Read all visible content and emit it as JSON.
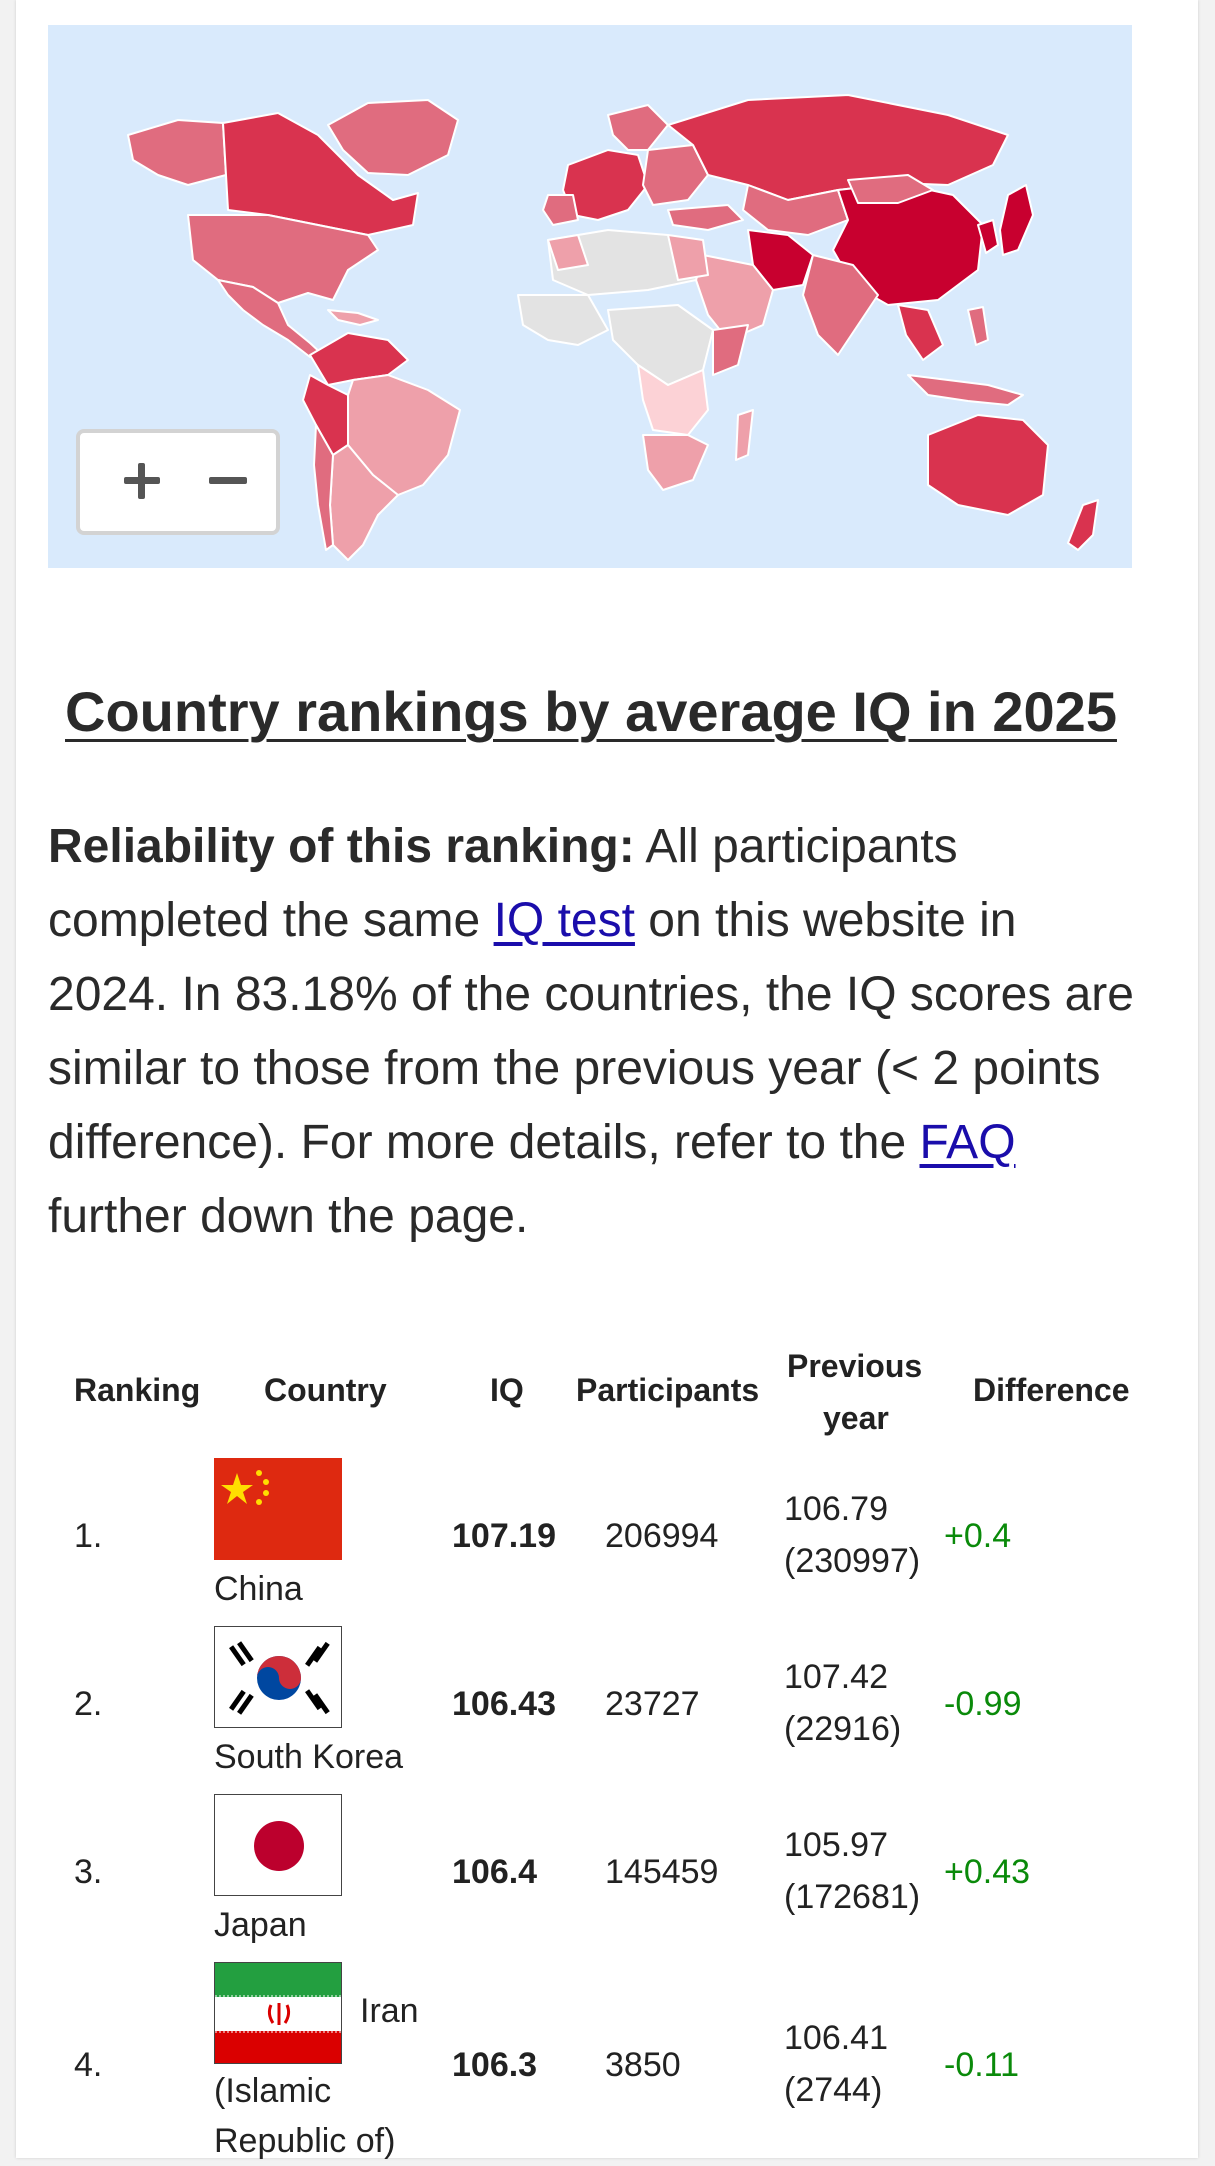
{
  "colors": {
    "ocean": "#d9eafc",
    "high": "#c8002f",
    "mid_high": "#d9334f",
    "mid": "#e06c7f",
    "low": "#eea0aa",
    "very_low": "#fcd2d6",
    "no_data": "#e3e3e3",
    "link": "#1a0dab",
    "diff_color": "#0a8a0a"
  },
  "map": {
    "zoom_in_label": "+",
    "zoom_out_label": "−"
  },
  "heading": "Country rankings by average IQ in 2025",
  "reliability": {
    "bold": "Reliability of this ranking:",
    "text1": " All participants completed the same ",
    "link1": "IQ test",
    "text2": " on this website in 2024. In 83.18% of the countries, the IQ scores are similar to those from the previous year (< 2 points difference). For more details, refer to the ",
    "link2": "FAQ",
    "text3": " further down the page."
  },
  "table": {
    "headers": {
      "ranking": "Ranking",
      "country": "Country",
      "iq": "IQ",
      "participants": "Participants",
      "previous_line1": "Previous",
      "previous_line2": "year",
      "difference": "Difference"
    },
    "rows": [
      {
        "rank": "1.",
        "country": "China",
        "flag": "china-flag",
        "iq": "107.19",
        "participants": "206994",
        "prev_iq": "106.79",
        "prev_participants": "(230997)",
        "diff": "+0.4"
      },
      {
        "rank": "2.",
        "country": "South Korea",
        "flag": "south-korea-flag",
        "iq": "106.43",
        "participants": "23727",
        "prev_iq": "107.42",
        "prev_participants": "(22916)",
        "diff": "-0.99"
      },
      {
        "rank": "3.",
        "country": "Japan",
        "flag": "japan-flag",
        "iq": "106.4",
        "participants": "145459",
        "prev_iq": "105.97",
        "prev_participants": "(172681)",
        "diff": "+0.43"
      },
      {
        "rank": "4.",
        "country_line1": "Iran",
        "country_line2": "(Islamic",
        "country_line3": "Republic of)",
        "flag": "iran-flag",
        "iq": "106.3",
        "participants": "3850",
        "prev_iq": "106.41",
        "prev_participants": "(2744)",
        "diff": "-0.11"
      }
    ]
  }
}
